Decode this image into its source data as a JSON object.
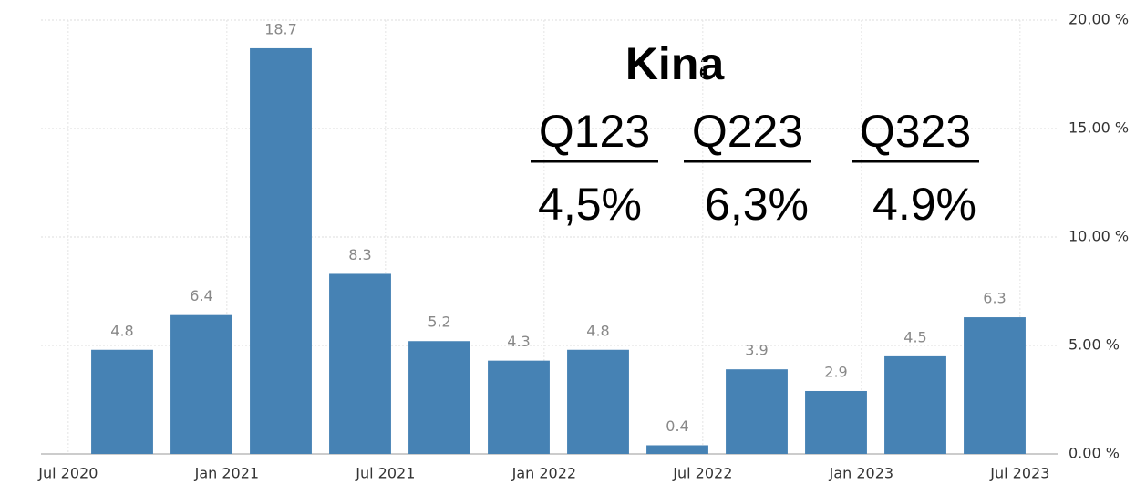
{
  "chart_data": {
    "type": "bar",
    "values": [
      4.8,
      6.4,
      18.7,
      8.3,
      5.2,
      4.3,
      4.8,
      0.4,
      3.9,
      2.9,
      4.5,
      6.3
    ],
    "color": "#4682b4",
    "xticks": [
      "Jul 2020",
      "Jan 2021",
      "Jul 2021",
      "Jan 2022",
      "Jul 2022",
      "Jan 2023",
      "Jul 2023"
    ],
    "ylim": [
      0,
      20
    ],
    "yticks": [
      {
        "value": 0,
        "label": "0.00 %"
      },
      {
        "value": 5,
        "label": "5.00 %"
      },
      {
        "value": 10,
        "label": "10.00 %"
      },
      {
        "value": 15,
        "label": "15.00 %"
      },
      {
        "value": 20,
        "label": "20.00 %"
      }
    ],
    "grid": true,
    "annotation": {
      "title": "Kina",
      "columns": [
        {
          "label": "Q123",
          "value": "4,5%"
        },
        {
          "label": "Q223",
          "value": "6,3%"
        },
        {
          "label": "Q323",
          "value": "4.9%"
        }
      ]
    }
  }
}
